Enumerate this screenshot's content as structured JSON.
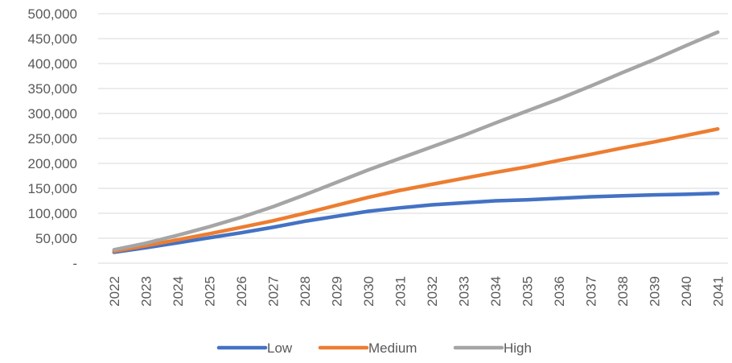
{
  "chart_data": {
    "type": "line",
    "title": "",
    "xlabel": "",
    "ylabel": "",
    "x": [
      "2022",
      "2023",
      "2024",
      "2025",
      "2026",
      "2027",
      "2028",
      "2029",
      "2030",
      "2031",
      "2032",
      "2033",
      "2034",
      "2035",
      "2036",
      "2037",
      "2038",
      "2039",
      "2040",
      "2041"
    ],
    "ylim": [
      0,
      500000
    ],
    "yticks": [
      0,
      50000,
      100000,
      150000,
      200000,
      250000,
      300000,
      350000,
      400000,
      450000,
      500000
    ],
    "ytick_labels": [
      "-",
      "50,000",
      "100,000",
      "150,000",
      "200,000",
      "250,000",
      "300,000",
      "350,000",
      "400,000",
      "450,000",
      "500,000"
    ],
    "grid": "horizontal",
    "legend": "bottom",
    "series": [
      {
        "name": "Low",
        "color": "#4472C4",
        "values": [
          22000,
          31000,
          41000,
          51000,
          61000,
          72000,
          84000,
          94000,
          104000,
          111000,
          117000,
          121000,
          125000,
          127000,
          130000,
          133000,
          135000,
          137000,
          138000,
          140000
        ]
      },
      {
        "name": "Medium",
        "color": "#ED7D31",
        "values": [
          24000,
          35000,
          47000,
          59000,
          72000,
          85000,
          100000,
          116000,
          132000,
          146000,
          158000,
          170000,
          182000,
          193000,
          206000,
          218000,
          231000,
          243000,
          256000,
          269000
        ]
      },
      {
        "name": "High",
        "color": "#A5A5A5",
        "values": [
          27000,
          40000,
          56000,
          73000,
          92000,
          113000,
          137000,
          162000,
          187000,
          210000,
          233000,
          256000,
          281000,
          305000,
          329000,
          355000,
          382000,
          408000,
          436000,
          463000
        ]
      }
    ]
  }
}
